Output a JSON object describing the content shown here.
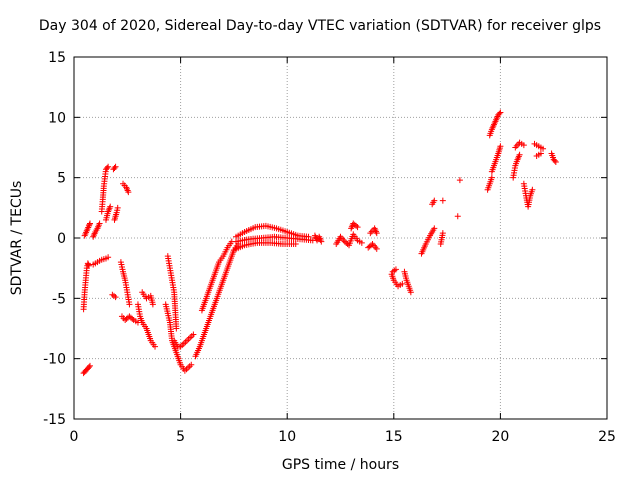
{
  "chart_data": {
    "type": "scatter",
    "title": "Day 304 of 2020, Sidereal Day-to-day VTEC variation (SDTVAR) for receiver glps",
    "xlabel": "GPS time / hours",
    "ylabel": "SDTVAR / TECUs",
    "xlim": [
      0,
      25
    ],
    "ylim": [
      -15,
      15
    ],
    "xticks": [
      0,
      5,
      10,
      15,
      20,
      25
    ],
    "yticks": [
      -15,
      -10,
      -5,
      0,
      5,
      10,
      15
    ],
    "grid": true,
    "marker": "+",
    "colors": {
      "series": "#ff0000",
      "grid": "#a0a0a0",
      "axis": "#000000"
    },
    "series": [
      {
        "name": "SDTVAR",
        "segments": [
          [
            [
              0.45,
              -5.9
            ],
            [
              0.5,
              -4.5
            ],
            [
              0.55,
              -3.5
            ],
            [
              0.6,
              -2.5
            ],
            [
              0.65,
              -2.1
            ],
            [
              0.7,
              -2.3
            ]
          ],
          [
            [
              0.45,
              -11.2
            ],
            [
              0.55,
              -11.0
            ],
            [
              0.65,
              -10.8
            ],
            [
              0.75,
              -10.6
            ]
          ],
          [
            [
              0.5,
              0.2
            ],
            [
              0.6,
              0.6
            ],
            [
              0.7,
              1.0
            ],
            [
              0.75,
              1.2
            ]
          ],
          [
            [
              0.9,
              -2.2
            ],
            [
              1.1,
              -2.0
            ],
            [
              1.3,
              -1.8
            ],
            [
              1.5,
              -1.7
            ],
            [
              1.6,
              -1.6
            ]
          ],
          [
            [
              0.9,
              0.1
            ],
            [
              1.0,
              0.5
            ],
            [
              1.1,
              0.8
            ],
            [
              1.2,
              1.2
            ]
          ],
          [
            [
              1.3,
              2.2
            ],
            [
              1.35,
              3.2
            ],
            [
              1.4,
              4.3
            ],
            [
              1.5,
              5.7
            ],
            [
              1.6,
              5.9
            ]
          ],
          [
            [
              1.5,
              1.5
            ],
            [
              1.6,
              2.2
            ],
            [
              1.7,
              2.6
            ]
          ],
          [
            [
              1.8,
              -4.7
            ],
            [
              1.95,
              -4.9
            ]
          ],
          [
            [
              1.85,
              5.7
            ],
            [
              1.95,
              5.9
            ]
          ],
          [
            [
              1.9,
              1.5
            ],
            [
              2.0,
              2.1
            ],
            [
              2.05,
              2.5
            ]
          ],
          [
            [
              2.2,
              -2.0
            ],
            [
              2.3,
              -2.8
            ],
            [
              2.4,
              -3.5
            ],
            [
              2.5,
              -4.5
            ],
            [
              2.6,
              -5.5
            ]
          ],
          [
            [
              2.25,
              -6.5
            ],
            [
              2.4,
              -6.8
            ],
            [
              2.6,
              -6.5
            ],
            [
              2.8,
              -6.8
            ],
            [
              3.0,
              -7.0
            ]
          ],
          [
            [
              2.3,
              4.5
            ],
            [
              2.45,
              4.2
            ],
            [
              2.55,
              3.8
            ]
          ],
          [
            [
              3.0,
              -5.5
            ],
            [
              3.1,
              -6.5
            ],
            [
              3.2,
              -7.0
            ],
            [
              3.4,
              -7.5
            ],
            [
              3.6,
              -8.5
            ],
            [
              3.8,
              -9.0
            ]
          ],
          [
            [
              3.2,
              -4.5
            ],
            [
              3.4,
              -5.0
            ],
            [
              3.6,
              -4.8
            ],
            [
              3.7,
              -5.5
            ]
          ],
          [
            [
              4.4,
              -1.5
            ],
            [
              4.5,
              -2.5
            ],
            [
              4.6,
              -3.5
            ],
            [
              4.7,
              -4.5
            ],
            [
              4.75,
              -6.0
            ],
            [
              4.8,
              -7.5
            ]
          ],
          [
            [
              4.3,
              -5.5
            ],
            [
              4.5,
              -7.0
            ],
            [
              4.6,
              -8.5
            ],
            [
              4.8,
              -9.5
            ],
            [
              5.0,
              -10.5
            ],
            [
              5.2,
              -11.0
            ],
            [
              5.5,
              -10.5
            ]
          ],
          [
            [
              4.7,
              -8.5
            ],
            [
              4.85,
              -9.0
            ],
            [
              5.0,
              -9.0
            ],
            [
              5.3,
              -8.5
            ],
            [
              5.6,
              -8.0
            ]
          ],
          [
            [
              5.7,
              -9.8
            ],
            [
              5.9,
              -9.0
            ],
            [
              6.1,
              -8.0
            ],
            [
              6.3,
              -7.0
            ],
            [
              6.5,
              -6.0
            ],
            [
              6.7,
              -5.0
            ],
            [
              6.9,
              -4.0
            ],
            [
              7.1,
              -3.0
            ],
            [
              7.3,
              -2.0
            ],
            [
              7.5,
              -1.0
            ],
            [
              7.7,
              -0.5
            ]
          ],
          [
            [
              6.0,
              -6.0
            ],
            [
              6.2,
              -5.0
            ],
            [
              6.4,
              -4.0
            ],
            [
              6.6,
              -3.0
            ],
            [
              6.8,
              -2.0
            ],
            [
              7.0,
              -1.5
            ],
            [
              7.2,
              -0.8
            ],
            [
              7.4,
              -0.3
            ]
          ],
          [
            [
              7.6,
              0.1
            ],
            [
              8.0,
              0.5
            ],
            [
              8.5,
              0.9
            ],
            [
              9.0,
              1.0
            ],
            [
              9.5,
              0.8
            ],
            [
              10.0,
              0.5
            ],
            [
              10.5,
              0.2
            ],
            [
              11.0,
              0.1
            ]
          ],
          [
            [
              7.6,
              -0.3
            ],
            [
              8.2,
              -0.1
            ],
            [
              8.8,
              0.0
            ],
            [
              9.4,
              0.1
            ],
            [
              10.0,
              0.0
            ],
            [
              10.6,
              -0.1
            ],
            [
              11.2,
              -0.2
            ]
          ],
          [
            [
              7.5,
              -1.0
            ],
            [
              8.0,
              -0.6
            ],
            [
              8.6,
              -0.4
            ],
            [
              9.2,
              -0.4
            ],
            [
              9.8,
              -0.5
            ],
            [
              10.4,
              -0.5
            ]
          ],
          [
            [
              11.3,
              0.2
            ],
            [
              11.4,
              -0.2
            ],
            [
              11.5,
              0.1
            ],
            [
              11.6,
              -0.3
            ]
          ],
          [
            [
              12.3,
              -0.5
            ],
            [
              12.5,
              0.1
            ],
            [
              12.7,
              -0.3
            ],
            [
              12.9,
              -0.6
            ],
            [
              13.1,
              0.3
            ],
            [
              13.3,
              -0.2
            ],
            [
              13.5,
              -0.4
            ]
          ],
          [
            [
              13.0,
              0.8
            ],
            [
              13.1,
              1.2
            ],
            [
              13.3,
              0.9
            ]
          ],
          [
            [
              13.9,
              0.4
            ],
            [
              14.1,
              0.8
            ],
            [
              14.2,
              0.4
            ]
          ],
          [
            [
              13.8,
              -0.8
            ],
            [
              14.0,
              -0.5
            ],
            [
              14.2,
              -0.9
            ]
          ],
          [
            [
              14.9,
              -3.0
            ],
            [
              15.0,
              -3.5
            ],
            [
              15.2,
              -4.0
            ],
            [
              15.4,
              -3.8
            ]
          ],
          [
            [
              14.95,
              -2.8
            ],
            [
              15.1,
              -2.6
            ]
          ],
          [
            [
              15.5,
              -2.8
            ],
            [
              15.6,
              -3.5
            ],
            [
              15.7,
              -4.0
            ],
            [
              15.8,
              -4.5
            ]
          ],
          [
            [
              16.3,
              -1.3
            ],
            [
              16.5,
              -0.5
            ],
            [
              16.7,
              0.2
            ],
            [
              16.9,
              0.8
            ]
          ],
          [
            [
              16.8,
              2.8
            ],
            [
              16.9,
              3.1
            ]
          ],
          [
            [
              17.2,
              -0.5
            ],
            [
              17.3,
              0.4
            ]
          ],
          [
            [
              17.3,
              3.1
            ]
          ],
          [
            [
              18.0,
              1.8
            ]
          ],
          [
            [
              18.1,
              4.8
            ]
          ],
          [
            [
              19.4,
              4.0
            ],
            [
              19.5,
              4.5
            ],
            [
              19.6,
              5.0
            ]
          ],
          [
            [
              19.5,
              8.5
            ],
            [
              19.6,
              9.0
            ],
            [
              19.7,
              9.4
            ],
            [
              19.8,
              9.8
            ],
            [
              19.9,
              10.2
            ],
            [
              20.0,
              10.4
            ]
          ],
          [
            [
              19.6,
              5.5
            ],
            [
              19.8,
              6.5
            ],
            [
              19.9,
              7.0
            ],
            [
              20.0,
              7.6
            ]
          ],
          [
            [
              20.6,
              5.0
            ],
            [
              20.7,
              6.0
            ],
            [
              20.8,
              6.5
            ],
            [
              20.9,
              6.9
            ]
          ],
          [
            [
              20.7,
              7.5
            ],
            [
              20.9,
              7.9
            ],
            [
              21.1,
              7.7
            ]
          ],
          [
            [
              21.1,
              4.5
            ],
            [
              21.2,
              3.5
            ],
            [
              21.3,
              2.6
            ],
            [
              21.4,
              3.5
            ],
            [
              21.5,
              4.0
            ]
          ],
          [
            [
              21.6,
              7.8
            ],
            [
              21.8,
              7.6
            ],
            [
              22.0,
              7.4
            ]
          ],
          [
            [
              21.7,
              6.8
            ],
            [
              21.9,
              7.0
            ]
          ],
          [
            [
              22.4,
              7.0
            ],
            [
              22.5,
              6.5
            ],
            [
              22.6,
              6.3
            ]
          ]
        ]
      }
    ]
  }
}
